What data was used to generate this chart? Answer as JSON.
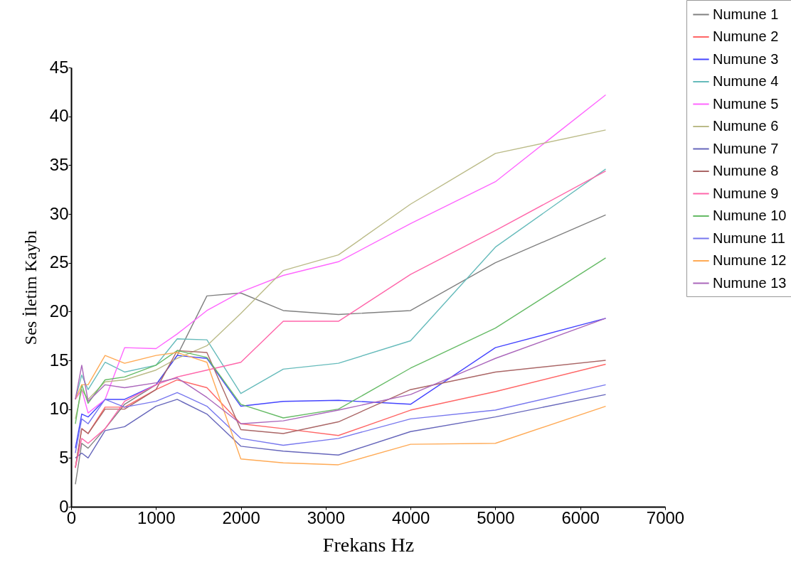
{
  "chart_data": {
    "type": "line",
    "xlabel": "Frekans Hz",
    "ylabel": "Ses İletim Kaybı",
    "x": [
      50,
      125,
      200,
      400,
      630,
      1000,
      1250,
      1600,
      2000,
      2500,
      3150,
      4000,
      5000,
      6300
    ],
    "xlim": [
      0,
      7000
    ],
    "xticks": [
      0,
      1000,
      2000,
      3000,
      4000,
      5000,
      6000,
      7000
    ],
    "ylim": [
      0,
      45
    ],
    "yticks": [
      0,
      5,
      10,
      15,
      20,
      25,
      30,
      35,
      40,
      45
    ],
    "grid": false,
    "legend": "top right",
    "marker": "none",
    "line_style": "solid",
    "series": [
      {
        "name": "Numune 1",
        "color": "#808080",
        "values": [
          2.3,
          6.5,
          6,
          8,
          10.5,
          12.5,
          15.5,
          21.6,
          21.9,
          20.1,
          19.7,
          20.1,
          25,
          29.9
        ]
      },
      {
        "name": "Numune 2",
        "color": "#ff6666",
        "values": [
          4,
          8,
          7.5,
          10.2,
          10.2,
          12,
          13,
          12.2,
          8.5,
          8,
          7.3,
          9.9,
          11.8,
          14.6
        ]
      },
      {
        "name": "Numune 3",
        "color": "#4444ff",
        "values": [
          6,
          9.5,
          9.2,
          11,
          11,
          12.5,
          15.5,
          15.2,
          10.3,
          10.8,
          10.9,
          10.5,
          16.3,
          19.3
        ]
      },
      {
        "name": "Numune 4",
        "color": "#66bbbb",
        "values": [
          11,
          13.5,
          12,
          14.8,
          13.8,
          14.5,
          17.2,
          17.1,
          11.6,
          14.1,
          14.7,
          17,
          26.6,
          34.6
        ]
      },
      {
        "name": "Numune 5",
        "color": "#ff66ff",
        "values": [
          11,
          12,
          9.6,
          11,
          16.3,
          16.2,
          17.7,
          20.1,
          22,
          23.7,
          25.1,
          29,
          33.3,
          42.2
        ]
      },
      {
        "name": "Numune 6",
        "color": "#bbbb88",
        "values": [
          9,
          12,
          11,
          12.8,
          13,
          14,
          15.2,
          16.5,
          19.8,
          24.2,
          25.8,
          31,
          36.2,
          38.6
        ]
      },
      {
        "name": "Numune 7",
        "color": "#6666bb",
        "values": [
          5,
          5.5,
          5,
          7.8,
          8.2,
          10.3,
          11,
          9.5,
          6.2,
          5.7,
          5.3,
          7.7,
          9.2,
          11.5
        ]
      },
      {
        "name": "Numune 8",
        "color": "#aa6666",
        "values": [
          4,
          8,
          7.5,
          10,
          10,
          12,
          16,
          15.8,
          7.9,
          7.5,
          8.7,
          12,
          13.8,
          15
        ]
      },
      {
        "name": "Numune 9",
        "color": "#ff66aa",
        "values": [
          4,
          7,
          6.5,
          8,
          10.8,
          12.5,
          13.3,
          14,
          14.8,
          19,
          19,
          23.8,
          28.3,
          34.4
        ]
      },
      {
        "name": "Numune 10",
        "color": "#66bb66",
        "values": [
          8.5,
          12.5,
          10.6,
          13,
          13.3,
          14.5,
          16,
          15.3,
          10.5,
          9.1,
          10,
          14.2,
          18.3,
          25.5
        ]
      },
      {
        "name": "Numune 11",
        "color": "#7777ee",
        "values": [
          5.5,
          9,
          8.5,
          11,
          10.2,
          10.8,
          11.7,
          10.3,
          7,
          6.3,
          7,
          9,
          9.9,
          12.5
        ]
      },
      {
        "name": "Numune 12",
        "color": "#ffaa55",
        "values": [
          11,
          12.5,
          12.5,
          15.5,
          14.7,
          15.5,
          15.8,
          14.8,
          4.9,
          4.5,
          4.3,
          6.4,
          6.5,
          10.3
        ]
      },
      {
        "name": "Numune 13",
        "color": "#aa66bb",
        "values": [
          11,
          14.5,
          10.8,
          12.5,
          12.2,
          12.7,
          13.2,
          11.2,
          8.5,
          8.8,
          9.9,
          11.5,
          15.2,
          19.3
        ]
      }
    ]
  }
}
